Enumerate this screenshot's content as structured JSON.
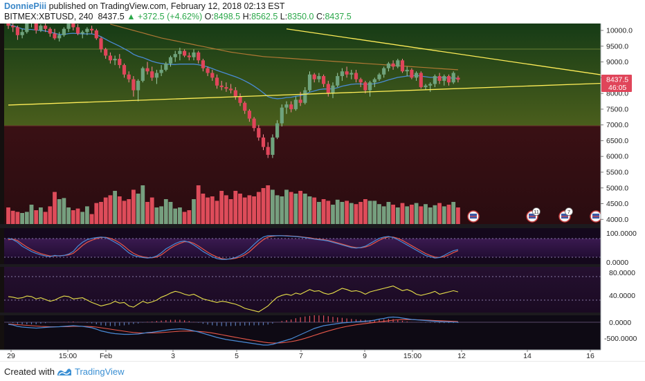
{
  "header": {
    "author": "DonniePiii",
    "published": "published on TradingView.com, February 12, 2018 02:13 EST",
    "symbol": "BITMEX:XBTUSD, 240",
    "last": "8437.5",
    "change": "+372.5 (+4.62%)",
    "o_label": "O:",
    "o_val": "8498.5",
    "h_label": "H:",
    "h_val": "8562.5",
    "l_label": "L:",
    "l_val": "8350.0",
    "c_label": "C:",
    "c_val": "8437.5"
  },
  "price_tag": {
    "price": "8437.5",
    "countdown": "46:05"
  },
  "footer": {
    "created_with": "Created with",
    "brand": "TradingView"
  },
  "events": [
    {
      "label": ""
    },
    {
      "label": "11"
    },
    {
      "label": "7"
    },
    {
      "label": ""
    }
  ],
  "colors": {
    "bull": "#6fa37d",
    "bear": "#e0455a",
    "trendline": "#ffee58",
    "ema_blue": "#4a8bd6",
    "ma_orange": "#c8803a",
    "osc_red": "#e8584a"
  },
  "chart_data": {
    "type": "candlestick",
    "symbol": "BITMEX:XBTUSD",
    "timeframe": "240",
    "price_axis": {
      "min": 4000,
      "max": 10000,
      "ticks": [
        10000,
        9500,
        9000,
        8500,
        8000,
        7500,
        7000,
        6500,
        6000,
        5500,
        5000,
        4500,
        4000
      ],
      "labels": [
        "10000.0",
        "9500.0",
        "9000.0",
        "8500.0",
        "8000.0",
        "7500.0",
        "7000.0",
        "6500.0",
        "6000.0",
        "5500.0",
        "5000.0",
        "4500.0",
        "4000.0"
      ]
    },
    "time_axis": {
      "labels": [
        "29",
        "15:00",
        "Feb",
        "3",
        "5",
        "7",
        "9",
        "15:00",
        "12",
        "14",
        "16"
      ]
    },
    "candles_ohlc": [
      [
        10300,
        10400,
        10050,
        10150
      ],
      [
        10150,
        10300,
        9950,
        10100
      ],
      [
        10100,
        10150,
        9700,
        9850
      ],
      [
        9850,
        10050,
        9750,
        9950
      ],
      [
        9950,
        10300,
        9900,
        10250
      ],
      [
        10250,
        10400,
        10100,
        10300
      ],
      [
        10300,
        10350,
        9900,
        10000
      ],
      [
        10000,
        10200,
        9950,
        10150
      ],
      [
        10150,
        10250,
        9950,
        10050
      ],
      [
        10050,
        10100,
        9800,
        9900
      ],
      [
        9900,
        10050,
        9700,
        9750
      ],
      [
        9750,
        9950,
        9650,
        9850
      ],
      [
        9850,
        10100,
        9800,
        10050
      ],
      [
        10050,
        10300,
        9950,
        10250
      ],
      [
        10250,
        10350,
        10000,
        10100
      ],
      [
        10100,
        10200,
        9850,
        9900
      ],
      [
        9900,
        10000,
        9750,
        9950
      ],
      [
        9950,
        10100,
        9850,
        10050
      ],
      [
        10050,
        10150,
        9900,
        10000
      ],
      [
        10000,
        10050,
        9700,
        9750
      ],
      [
        9750,
        9800,
        9300,
        9400
      ],
      [
        9400,
        9450,
        9100,
        9200
      ],
      [
        9200,
        9300,
        8950,
        9050
      ],
      [
        9050,
        9200,
        8900,
        9100
      ],
      [
        9100,
        9250,
        8800,
        8900
      ],
      [
        8900,
        8950,
        8500,
        8600
      ],
      [
        8600,
        8700,
        8350,
        8450
      ],
      [
        8450,
        8550,
        7900,
        8100
      ],
      [
        8100,
        8450,
        7750,
        8400
      ],
      [
        8400,
        8850,
        8350,
        8800
      ],
      [
        8800,
        9000,
        8600,
        8700
      ],
      [
        8700,
        8850,
        8400,
        8500
      ],
      [
        8500,
        8750,
        8300,
        8650
      ],
      [
        8650,
        8900,
        8550,
        8750
      ],
      [
        8750,
        9000,
        8700,
        8950
      ],
      [
        8950,
        9200,
        8850,
        9150
      ],
      [
        9150,
        9350,
        9000,
        9250
      ],
      [
        9250,
        9450,
        9050,
        9350
      ],
      [
        9350,
        9400,
        9150,
        9200
      ],
      [
        9200,
        9300,
        9050,
        9150
      ],
      [
        9150,
        9400,
        9050,
        9300
      ],
      [
        9300,
        9350,
        8950,
        9050
      ],
      [
        9050,
        9100,
        8700,
        8800
      ],
      [
        8800,
        8850,
        8550,
        8650
      ],
      [
        8650,
        8750,
        8400,
        8500
      ],
      [
        8500,
        8600,
        8150,
        8250
      ],
      [
        8250,
        8400,
        8100,
        8200
      ],
      [
        8200,
        8350,
        8050,
        8150
      ],
      [
        8150,
        8300,
        8000,
        8100
      ],
      [
        8100,
        8200,
        7800,
        7900
      ],
      [
        7900,
        8000,
        7600,
        7700
      ],
      [
        7700,
        7750,
        7350,
        7450
      ],
      [
        7450,
        7500,
        7100,
        7200
      ],
      [
        7200,
        7250,
        6800,
        6900
      ],
      [
        6900,
        7000,
        6500,
        6600
      ],
      [
        6600,
        6700,
        6200,
        6300
      ],
      [
        6300,
        6450,
        5950,
        6050
      ],
      [
        6050,
        6700,
        5950,
        6600
      ],
      [
        6600,
        7150,
        6550,
        7050
      ],
      [
        7050,
        7650,
        6950,
        7550
      ],
      [
        7550,
        7750,
        7350,
        7650
      ],
      [
        7650,
        7750,
        7400,
        7500
      ],
      [
        7500,
        7900,
        7450,
        7800
      ],
      [
        7800,
        8050,
        7600,
        7700
      ],
      [
        7700,
        8200,
        7650,
        8100
      ],
      [
        8100,
        8700,
        8050,
        8600
      ],
      [
        8600,
        8650,
        8350,
        8450
      ],
      [
        8450,
        8650,
        8350,
        8550
      ],
      [
        8550,
        8600,
        8200,
        8300
      ],
      [
        8300,
        8400,
        7900,
        8000
      ],
      [
        8000,
        8350,
        7850,
        8250
      ],
      [
        8250,
        8650,
        8200,
        8550
      ],
      [
        8550,
        8800,
        8400,
        8700
      ],
      [
        8700,
        8850,
        8500,
        8600
      ],
      [
        8600,
        8750,
        8450,
        8650
      ],
      [
        8650,
        8750,
        8350,
        8450
      ],
      [
        8450,
        8500,
        8200,
        8350
      ],
      [
        8350,
        8400,
        8000,
        8100
      ],
      [
        8100,
        8400,
        7900,
        8350
      ],
      [
        8350,
        8500,
        8200,
        8450
      ],
      [
        8450,
        8650,
        8400,
        8600
      ],
      [
        8600,
        8850,
        8500,
        8800
      ],
      [
        8800,
        9000,
        8700,
        8950
      ],
      [
        8950,
        9050,
        8750,
        8850
      ],
      [
        8850,
        9100,
        8800,
        9050
      ],
      [
        9050,
        9100,
        8650,
        8700
      ],
      [
        8700,
        8850,
        8550,
        8750
      ],
      [
        8750,
        8800,
        8450,
        8500
      ],
      [
        8500,
        8700,
        8400,
        8650
      ],
      [
        8650,
        8700,
        8150,
        8200
      ],
      [
        8200,
        8300,
        8100,
        8250
      ],
      [
        8250,
        8350,
        8050,
        8300
      ],
      [
        8300,
        8600,
        8200,
        8550
      ],
      [
        8550,
        8650,
        8300,
        8400
      ],
      [
        8400,
        8600,
        8250,
        8550
      ],
      [
        8550,
        8600,
        8250,
        8350
      ],
      [
        8350,
        8700,
        8300,
        8650
      ],
      [
        8498.5,
        8562.5,
        8350,
        8437.5
      ]
    ],
    "ema_blue": [
      10200,
      10150,
      10100,
      10050,
      10030,
      10030,
      10010,
      10000,
      9980,
      9950,
      9910,
      9870,
      9870,
      9900,
      9910,
      9900,
      9890,
      9890,
      9890,
      9860,
      9800,
      9720,
      9640,
      9570,
      9500,
      9420,
      9340,
      9240,
      9180,
      9140,
      9080,
      9020,
      8980,
      8950,
      8930,
      8920,
      8920,
      8930,
      8930,
      8930,
      8930,
      8910,
      8880,
      8840,
      8790,
      8730,
      8680,
      8630,
      8580,
      8530,
      8470,
      8400,
      8320,
      8230,
      8130,
      8020,
      7900,
      7850,
      7830,
      7840,
      7870,
      7880,
      7910,
      7930,
      7970,
      8040,
      8080,
      8120,
      8140,
      8140,
      8150,
      8180,
      8230,
      8260,
      8290,
      8300,
      8300,
      8290,
      8290,
      8310,
      8340,
      8380,
      8430,
      8470,
      8510,
      8530,
      8550,
      8560,
      8570,
      8550,
      8530,
      8510,
      8510,
      8510,
      8500,
      8490,
      8490,
      8480
    ],
    "ma_orange": {
      "start_index": 22,
      "values": [
        10200,
        10160,
        10120,
        10080,
        10040,
        10000,
        9960,
        9920,
        9880,
        9840,
        9800,
        9760,
        9730,
        9700,
        9670,
        9640,
        9610,
        9580,
        9550,
        9520,
        9490,
        9460,
        9430,
        9400,
        9370,
        9340,
        9310,
        9290,
        9270,
        9250,
        9230,
        9210,
        9190,
        9170,
        9160,
        9150,
        9140,
        9130,
        9120,
        9110,
        9100,
        9090,
        9080,
        9070,
        9060,
        9050,
        9040,
        9030,
        9020,
        9010,
        9000,
        8990,
        8980,
        8970,
        8960,
        8950,
        8940,
        8930,
        8920,
        8910,
        8900,
        8890,
        8880,
        8870,
        8860,
        8850,
        8840,
        8830,
        8820,
        8810,
        8800,
        8790,
        8780,
        8770,
        8760,
        8750
      ]
    },
    "trendlines": [
      {
        "name": "descending",
        "from": {
          "bar": 60,
          "price": 10050
        },
        "slope_per_bar": -21.5
      },
      {
        "name": "ascending",
        "from": {
          "bar": 0,
          "price": 7630
        },
        "slope_per_bar": 5.4
      }
    ],
    "volume": [
      0.3,
      0.24,
      0.22,
      0.2,
      0.22,
      0.35,
      0.25,
      0.3,
      0.22,
      0.32,
      0.58,
      0.45,
      0.47,
      0.3,
      0.25,
      0.28,
      0.22,
      0.32,
      0.18,
      0.38,
      0.4,
      0.48,
      0.52,
      0.6,
      0.5,
      0.42,
      0.45,
      0.62,
      0.55,
      0.7,
      0.4,
      0.48,
      0.3,
      0.32,
      0.45,
      0.4,
      0.28,
      0.3,
      0.22,
      0.25,
      0.45,
      0.7,
      0.55,
      0.48,
      0.5,
      0.42,
      0.6,
      0.52,
      0.45,
      0.6,
      0.55,
      0.48,
      0.52,
      0.5,
      0.58,
      0.65,
      0.7,
      0.62,
      0.52,
      0.5,
      0.62,
      0.58,
      0.55,
      0.6,
      0.55,
      0.5,
      0.48,
      0.4,
      0.45,
      0.42,
      0.35,
      0.44,
      0.4,
      0.42,
      0.38,
      0.36,
      0.4,
      0.45,
      0.42,
      0.42,
      0.36,
      0.32,
      0.4,
      0.35,
      0.3,
      0.38,
      0.32,
      0.35,
      0.38,
      0.32,
      0.36,
      0.3,
      0.34,
      0.38,
      0.32,
      0.35,
      0.4,
      0.3
    ],
    "stoch": {
      "axis": [
        "100.0000",
        "0.0000"
      ],
      "k": [
        85,
        80,
        70,
        55,
        45,
        35,
        28,
        22,
        18,
        15,
        20,
        18,
        20,
        25,
        35,
        55,
        70,
        80,
        85,
        88,
        90,
        88,
        80,
        70,
        60,
        45,
        30,
        20,
        15,
        12,
        10,
        12,
        18,
        30,
        45,
        55,
        65,
        72,
        75,
        70,
        60,
        48,
        35,
        25,
        15,
        8,
        5,
        5,
        8,
        12,
        20,
        30,
        45,
        62,
        78,
        90,
        95,
        95,
        95,
        95,
        94,
        93,
        92,
        90,
        88,
        85,
        82,
        80,
        78,
        75,
        70,
        65,
        60,
        55,
        50,
        48,
        50,
        55,
        65,
        75,
        85,
        90,
        92,
        88,
        80,
        70,
        60,
        50,
        40,
        30,
        20,
        15,
        10,
        12,
        20,
        30,
        38,
        42
      ],
      "d": [
        80,
        82,
        76,
        64,
        52,
        42,
        34,
        27,
        22,
        18,
        18,
        19,
        20,
        22,
        28,
        42,
        58,
        70,
        78,
        84,
        88,
        89,
        85,
        78,
        68,
        55,
        40,
        28,
        20,
        15,
        12,
        11,
        14,
        22,
        35,
        48,
        58,
        66,
        72,
        72,
        66,
        56,
        44,
        32,
        22,
        14,
        8,
        6,
        6,
        9,
        14,
        22,
        34,
        50,
        66,
        80,
        90,
        93,
        95,
        95,
        95,
        94,
        93,
        91,
        89,
        87,
        84,
        82,
        80,
        77,
        73,
        68,
        63,
        58,
        53,
        50,
        49,
        52,
        58,
        68,
        78,
        86,
        90,
        90,
        85,
        77,
        67,
        57,
        47,
        37,
        27,
        20,
        14,
        12,
        15,
        22,
        31,
        38
      ]
    },
    "rsi": {
      "axis": [
        "80.0000",
        "40.0000"
      ],
      "values": [
        46,
        45,
        43,
        44,
        47,
        46,
        42,
        44,
        41,
        38,
        40,
        44,
        47,
        46,
        42,
        43,
        44,
        40,
        36,
        33,
        30,
        32,
        34,
        38,
        35,
        36,
        30,
        28,
        33,
        38,
        35,
        37,
        40,
        45,
        48,
        52,
        55,
        53,
        50,
        48,
        50,
        46,
        42,
        40,
        38,
        36,
        38,
        37,
        35,
        33,
        30,
        26,
        24,
        22,
        20,
        25,
        30,
        38,
        45,
        48,
        50,
        48,
        52,
        50,
        54,
        58,
        55,
        56,
        52,
        50,
        52,
        56,
        60,
        58,
        55,
        56,
        54,
        50,
        54,
        56,
        58,
        60,
        62,
        64,
        60,
        56,
        58,
        55,
        50,
        48,
        50,
        52,
        55,
        50,
        52,
        54,
        56,
        54
      ]
    },
    "macd": {
      "axis": [
        "0.0000",
        "-500.0000"
      ],
      "macd_line": [
        -60,
        -80,
        -120,
        -140,
        -150,
        -160,
        -170,
        -160,
        -150,
        -140,
        -135,
        -130,
        -120,
        -110,
        -100,
        -110,
        -120,
        -140,
        -160,
        -200,
        -250,
        -280,
        -310,
        -330,
        -340,
        -350,
        -350,
        -345,
        -340,
        -320,
        -300,
        -290,
        -270,
        -250,
        -230,
        -210,
        -200,
        -190,
        -200,
        -220,
        -250,
        -280,
        -320,
        -360,
        -400,
        -440,
        -470,
        -500,
        -520,
        -540,
        -560,
        -580,
        -600,
        -620,
        -640,
        -660,
        -660,
        -640,
        -600,
        -560,
        -520,
        -480,
        -420,
        -360,
        -300,
        -240,
        -180,
        -140,
        -100,
        -80,
        -60,
        -40,
        -20,
        -10,
        0,
        10,
        20,
        30,
        40,
        60,
        90,
        110,
        140,
        150,
        140,
        120,
        100,
        80,
        70,
        60,
        50,
        40,
        30,
        20,
        15,
        10,
        5,
        0
      ],
      "signal_line": [
        -50,
        -60,
        -70,
        -80,
        -90,
        -100,
        -110,
        -120,
        -125,
        -130,
        -130,
        -130,
        -128,
        -125,
        -120,
        -118,
        -118,
        -122,
        -128,
        -140,
        -160,
        -180,
        -200,
        -220,
        -240,
        -260,
        -280,
        -295,
        -305,
        -310,
        -312,
        -310,
        -305,
        -298,
        -290,
        -280,
        -270,
        -260,
        -255,
        -254,
        -258,
        -265,
        -276,
        -292,
        -312,
        -336,
        -360,
        -386,
        -412,
        -436,
        -460,
        -484,
        -508,
        -530,
        -552,
        -574,
        -592,
        -602,
        -602,
        -594,
        -580,
        -560,
        -536,
        -504,
        -466,
        -424,
        -380,
        -336,
        -294,
        -254,
        -216,
        -180,
        -148,
        -120,
        -96,
        -74,
        -55,
        -38,
        -22,
        -6,
        10,
        26,
        42,
        60,
        70,
        76,
        78,
        76,
        72,
        68,
        62,
        56,
        50,
        44,
        38,
        32,
        26,
        20
      ]
    }
  }
}
